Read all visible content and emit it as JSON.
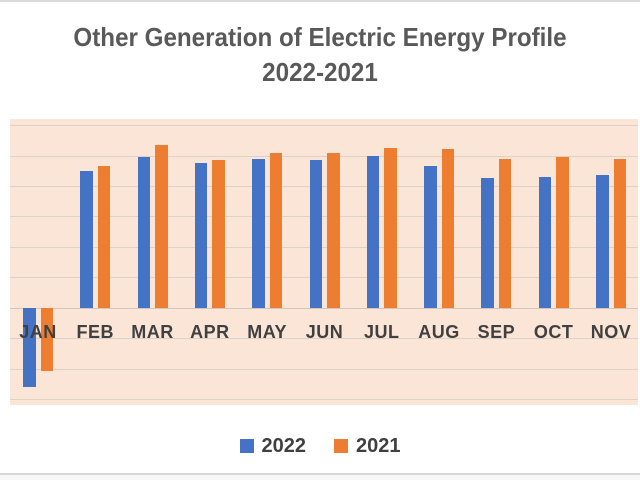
{
  "title": {
    "line1": "Other Generation of Electric Energy Profile",
    "line2": "2022-2021",
    "color": "#595959"
  },
  "chart_data": {
    "type": "bar",
    "title": "Other Generation of Electric Energy Profile 2022-2021",
    "categories": [
      "JAN",
      "FEB",
      "MAR",
      "APR",
      "MAY",
      "JUN",
      "JUL",
      "AUG",
      "SEP",
      "OCT",
      "NOV"
    ],
    "series": [
      {
        "name": "2022",
        "color": "#4472C4",
        "values": [
          -2.6,
          4.5,
          4.95,
          4.75,
          4.9,
          4.85,
          5.0,
          4.65,
          4.25,
          4.3,
          4.35
        ]
      },
      {
        "name": "2021",
        "color": "#ED7D31",
        "values": [
          -2.1,
          4.65,
          5.35,
          4.85,
          5.1,
          5.1,
          5.25,
          5.2,
          4.9,
          4.95,
          4.9
        ]
      }
    ],
    "xlabel": "",
    "ylabel": "",
    "ylim": [
      -3.2,
      6.2
    ],
    "gridline_step": 1,
    "grid": "horizontal",
    "y_tick_labels_visible": false,
    "legend_position": "bottom",
    "colors": {
      "plot_background": "#fbe5d6",
      "gridline": "#ddd2c9",
      "zero_axis_line": "#d4c6bd",
      "x_label_text": "#404040",
      "legend_text": "#404040",
      "title_text": "#595959",
      "page_edge_line": "#d9d9d9"
    }
  }
}
